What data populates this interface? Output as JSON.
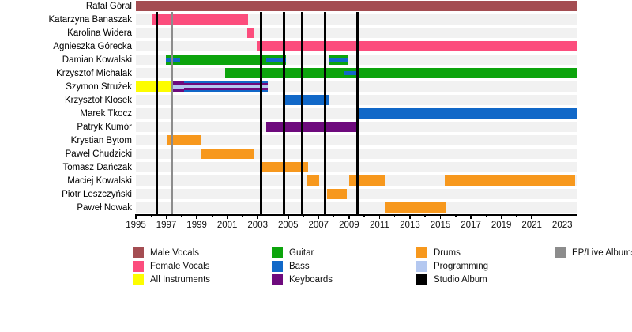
{
  "chart_data": {
    "type": "timeline",
    "description": "Band members timeline with roles and album release markers",
    "axis": {
      "year_start": 1995,
      "year_end": 2024,
      "major_tick_years": [
        1995,
        1997,
        1999,
        2001,
        2003,
        2005,
        2007,
        2009,
        2011,
        2013,
        2015,
        2017,
        2019,
        2021,
        2023
      ],
      "minor_tick_years": [
        1996,
        1998,
        2000,
        2002,
        2004,
        2006,
        2008,
        2010,
        2012,
        2014,
        2016,
        2018,
        2020,
        2022
      ]
    },
    "roles": {
      "male_vocals": {
        "label": "Male Vocals",
        "color": "#a44d52"
      },
      "female_vocals": {
        "label": "Female Vocals",
        "color": "#fc4d7d"
      },
      "all_instruments": {
        "label": "All Instruments",
        "color": "#fdfd00"
      },
      "guitar": {
        "label": "Guitar",
        "color": "#0ca40c"
      },
      "bass": {
        "label": "Bass",
        "color": "#1168c8"
      },
      "keyboards": {
        "label": "Keyboards",
        "color": "#6e0a7d"
      },
      "drums": {
        "label": "Drums",
        "color": "#f7981d"
      },
      "programming": {
        "label": "Programming",
        "color": "#b4c8f0"
      },
      "studio_album": {
        "label": "Studio Album",
        "color": "#000000"
      },
      "ep_live_albums": {
        "label": "EP/Live Albums",
        "color": "#8c8c8c"
      }
    },
    "members": [
      {
        "name": "Rafał Góral",
        "segments": [
          {
            "s": 1995.0,
            "e": 2024.0,
            "role": "male_vocals"
          }
        ]
      },
      {
        "name": "Katarzyna Banaszak",
        "segments": [
          {
            "s": 1996.05,
            "e": 2002.35,
            "role": "female_vocals"
          }
        ]
      },
      {
        "name": "Karolina Widera",
        "segments": [
          {
            "s": 2002.3,
            "e": 2002.8,
            "role": "female_vocals"
          }
        ]
      },
      {
        "name": "Agnieszka Górecka",
        "segments": [
          {
            "s": 2002.95,
            "e": 2024.0,
            "role": "female_vocals"
          }
        ]
      },
      {
        "name": "Damian Kowalski",
        "segments": [
          {
            "s": 1996.95,
            "e": 2004.85,
            "role": "guitar",
            "overlays": [
              {
                "s": 1996.95,
                "e": 1997.9,
                "role": "bass"
              },
              {
                "s": 2003.55,
                "e": 2004.85,
                "role": "bass"
              }
            ]
          },
          {
            "s": 2007.7,
            "e": 2008.9,
            "role": "guitar",
            "layers": [
              "guitar",
              "bass"
            ]
          }
        ]
      },
      {
        "name": "Krzysztof Michalak",
        "segments": [
          {
            "s": 2000.85,
            "e": 2024.0,
            "role": "guitar",
            "overlays": [
              {
                "s": 2008.7,
                "e": 2009.65,
                "role": "bass"
              }
            ]
          }
        ]
      },
      {
        "name": "Szymon Strużek",
        "segments": [
          {
            "s": 1995.0,
            "e": 1997.4,
            "role": "all_instruments"
          },
          {
            "s": 1997.4,
            "e": 1998.15,
            "role": "keyboards",
            "layers": [
              "keyboards",
              "programming"
            ]
          },
          {
            "s": 1998.15,
            "e": 2003.65,
            "role": "bass",
            "layers": [
              "bass",
              "keyboards",
              "programming"
            ]
          }
        ]
      },
      {
        "name": "Krzysztof Klosek",
        "segments": [
          {
            "s": 2004.8,
            "e": 2007.7,
            "role": "bass"
          }
        ]
      },
      {
        "name": "Marek Tkocz",
        "segments": [
          {
            "s": 2009.55,
            "e": 2024.0,
            "role": "bass"
          }
        ]
      },
      {
        "name": "Patryk Kumór",
        "segments": [
          {
            "s": 2003.55,
            "e": 2009.55,
            "role": "keyboards"
          }
        ]
      },
      {
        "name": "Krystian Bytom",
        "segments": [
          {
            "s": 1997.0,
            "e": 1999.3,
            "role": "drums"
          }
        ]
      },
      {
        "name": "Paweł Chudzicki",
        "segments": [
          {
            "s": 1999.25,
            "e": 2002.8,
            "role": "drums"
          }
        ]
      },
      {
        "name": "Tomasz Dańczak",
        "segments": [
          {
            "s": 2003.15,
            "e": 2006.3,
            "role": "drums"
          }
        ]
      },
      {
        "name": "Maciej Kowalski",
        "segments": [
          {
            "s": 2006.25,
            "e": 2007.05,
            "role": "drums"
          },
          {
            "s": 2009.0,
            "e": 2011.35,
            "role": "drums"
          },
          {
            "s": 2015.3,
            "e": 2023.85,
            "role": "drums"
          }
        ]
      },
      {
        "name": "Piotr Leszczyński",
        "segments": [
          {
            "s": 2007.55,
            "e": 2008.85,
            "role": "drums"
          }
        ]
      },
      {
        "name": "Paweł Nowak",
        "segments": [
          {
            "s": 2011.35,
            "e": 2015.35,
            "role": "drums"
          }
        ]
      }
    ],
    "releases": {
      "studio_album_years": [
        1996.4,
        2003.2,
        2004.75,
        2005.9,
        2007.45,
        2009.55
      ],
      "ep_live_years": [
        1997.35
      ]
    },
    "legend": {
      "columns": [
        [
          "male_vocals",
          "female_vocals",
          "all_instruments"
        ],
        [
          "guitar",
          "bass",
          "keyboards"
        ],
        [
          "drums",
          "programming",
          "studio_album"
        ],
        [
          "ep_live_albums"
        ]
      ]
    }
  }
}
